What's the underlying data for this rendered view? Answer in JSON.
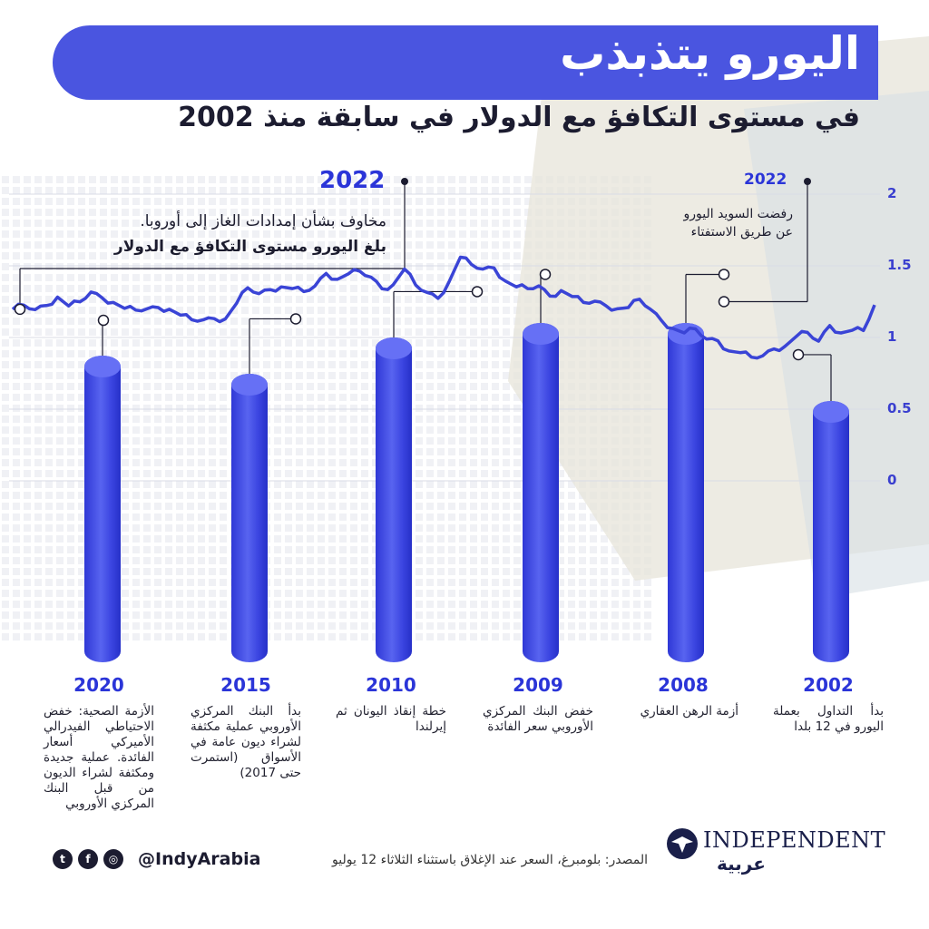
{
  "header": {
    "title": "اليورو يتذبذب",
    "subtitle": "في مستوى التكافؤ مع الدولار في سابقة منذ 2002"
  },
  "annotations": {
    "left": {
      "year": "2022",
      "line1": "مخاوف بشأن إمدادات الغاز إلى أوروبا.",
      "line2": "بلغ اليورو مستوى التكافؤ مع الدولار"
    },
    "right": {
      "year": "2022",
      "line1": "رفضت السويد اليورو",
      "line2": "عن طريق الاستفتاء"
    }
  },
  "chart_data": {
    "type": "line",
    "series": [
      {
        "values": [
          1.18,
          1.22,
          1.2,
          1.24,
          1.27,
          1.22,
          1.26,
          1.3,
          1.27,
          1.25,
          1.22,
          1.18,
          1.2,
          1.22,
          1.18,
          1.15,
          1.13,
          1.14,
          1.12,
          1.13,
          1.25,
          1.33,
          1.3,
          1.34,
          1.37,
          1.33,
          1.32,
          1.37,
          1.43,
          1.4,
          1.45,
          1.48,
          1.41,
          1.34,
          1.38,
          1.46,
          1.36,
          1.32,
          1.29,
          1.38,
          1.56,
          1.52,
          1.46,
          1.48,
          1.4,
          1.37,
          1.33,
          1.36,
          1.3,
          1.31,
          1.28,
          1.25,
          1.27,
          1.21,
          1.2,
          1.22,
          1.25,
          1.19,
          1.12,
          1.08,
          1.02,
          1.06,
          1.0,
          0.96,
          0.9,
          0.9,
          0.88,
          0.86,
          0.92,
          0.95,
          0.99,
          1.03,
          0.98,
          1.1,
          1.02,
          1.05,
          1.06,
          1.21
        ]
      }
    ],
    "yticks": [
      "2",
      "1.5",
      "1",
      "0.5",
      "0"
    ],
    "ylim": [
      0,
      2
    ],
    "events": [
      {
        "year": "2020",
        "value": 1.12,
        "text": "الأزمة الصحية: خفض الاحتياطي الفيدرالي الأميركي أسعار الفائدة. عملية جديدة ومكثفة لشراء الديون من قبل البنك المركزي الأوروبي"
      },
      {
        "year": "2015",
        "value": 1.13,
        "text": "بدأ البنك المركزي الأوروبي عملية مكثفة لشراء ديون عامة في الأسواق (استمرت حتى 2017)"
      },
      {
        "year": "2010",
        "value": 1.32,
        "text": "خطة إنقاذ اليونان ثم إيرلندا"
      },
      {
        "year": "2009",
        "value": 1.44,
        "text": "خفض البنك المركزي الأوروبي سعر الفائدة"
      },
      {
        "year": "2008",
        "value": 1.44,
        "text": "أزمة الرهن العقاري"
      },
      {
        "year": "2002",
        "value": 0.88,
        "text": "بدأ التداول بعملة اليورو في 12 بلدا"
      }
    ]
  },
  "footer": {
    "source": "المصدر: بلومبرغ، السعر عند الإغلاق باستثناء الثلاثاء 12 يوليو",
    "handle": "@IndyArabia",
    "logo": "INDEPENDENT",
    "logo_sub": "عربية"
  },
  "colors": {
    "accent": "#4a55e0",
    "line": "#3a44d6",
    "text": "#1c1c30"
  }
}
